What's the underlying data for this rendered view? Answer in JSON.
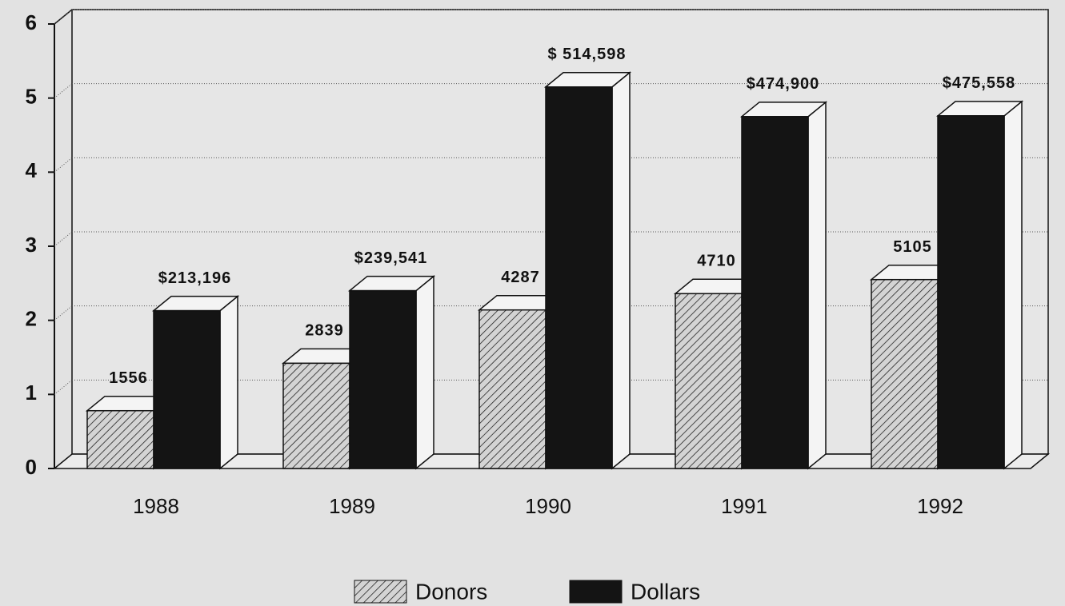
{
  "chart_data": {
    "type": "bar",
    "categories": [
      "1988",
      "1989",
      "1990",
      "1991",
      "1992"
    ],
    "series": [
      {
        "name": "Donors",
        "color": "#d4d4d4",
        "hatch": true,
        "values": [
          0.78,
          1.42,
          2.14,
          2.36,
          2.55
        ],
        "value_labels": [
          "1556",
          "2839",
          "4287",
          "4710",
          "5105"
        ]
      },
      {
        "name": "Dollars",
        "color": "#141414",
        "hatch": false,
        "values": [
          2.13,
          2.4,
          5.15,
          4.75,
          4.76
        ],
        "value_labels": [
          "$213,196",
          "$239,541",
          "$ 514,598",
          "$474,900",
          "$475,558"
        ]
      }
    ],
    "ylim": [
      0,
      6
    ],
    "yticks": [
      0,
      1,
      2,
      3,
      4,
      5,
      6
    ],
    "grid": true,
    "legend": "bottom"
  }
}
